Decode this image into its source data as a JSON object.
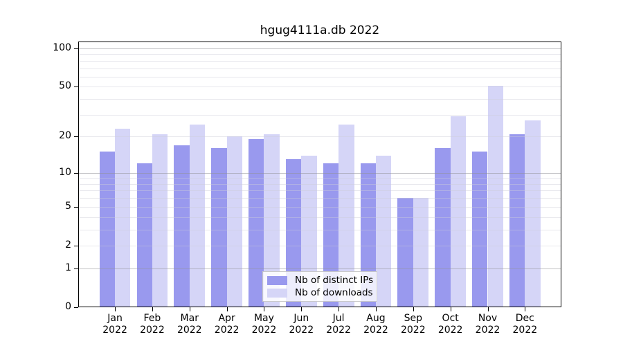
{
  "page": {
    "background": "#ffffff"
  },
  "chart_data": {
    "type": "bar",
    "title": "hgug4111a.db 2022",
    "categories": [
      "Jan",
      "Feb",
      "Mar",
      "Apr",
      "May",
      "Jun",
      "Jul",
      "Aug",
      "Sep",
      "Oct",
      "Nov",
      "Dec"
    ],
    "category_year": "2022",
    "series": [
      {
        "name": "Nb of distinct IPs",
        "color": "#9999ee",
        "values": [
          15,
          12,
          17,
          16,
          19,
          13,
          12,
          12,
          6,
          16,
          15,
          21
        ]
      },
      {
        "name": "Nb of downloads",
        "color": "#d5d5f7",
        "values": [
          23,
          21,
          25,
          20,
          21,
          14,
          25,
          14,
          6,
          29,
          51,
          27
        ]
      }
    ],
    "xlabel": "",
    "ylabel": "",
    "y_axis": {
      "ticks": [
        100,
        50,
        20,
        10,
        5,
        2,
        1,
        0
      ],
      "scale": "log10(1+x)",
      "ylim": [
        0,
        100
      ]
    },
    "gridlines": {
      "major": [
        1,
        10,
        100
      ],
      "minor": [
        2,
        3,
        4,
        5,
        6,
        7,
        8,
        9,
        20,
        30,
        40,
        50,
        60,
        70,
        80,
        90
      ]
    },
    "legend": {
      "position": "inside-bottom-center"
    },
    "grid": true
  },
  "colors": {
    "axis": "#000000",
    "major_grid": "#c9c9cd",
    "minor_grid": "#e9e9ef",
    "legend_border": "#c9c9c9"
  }
}
